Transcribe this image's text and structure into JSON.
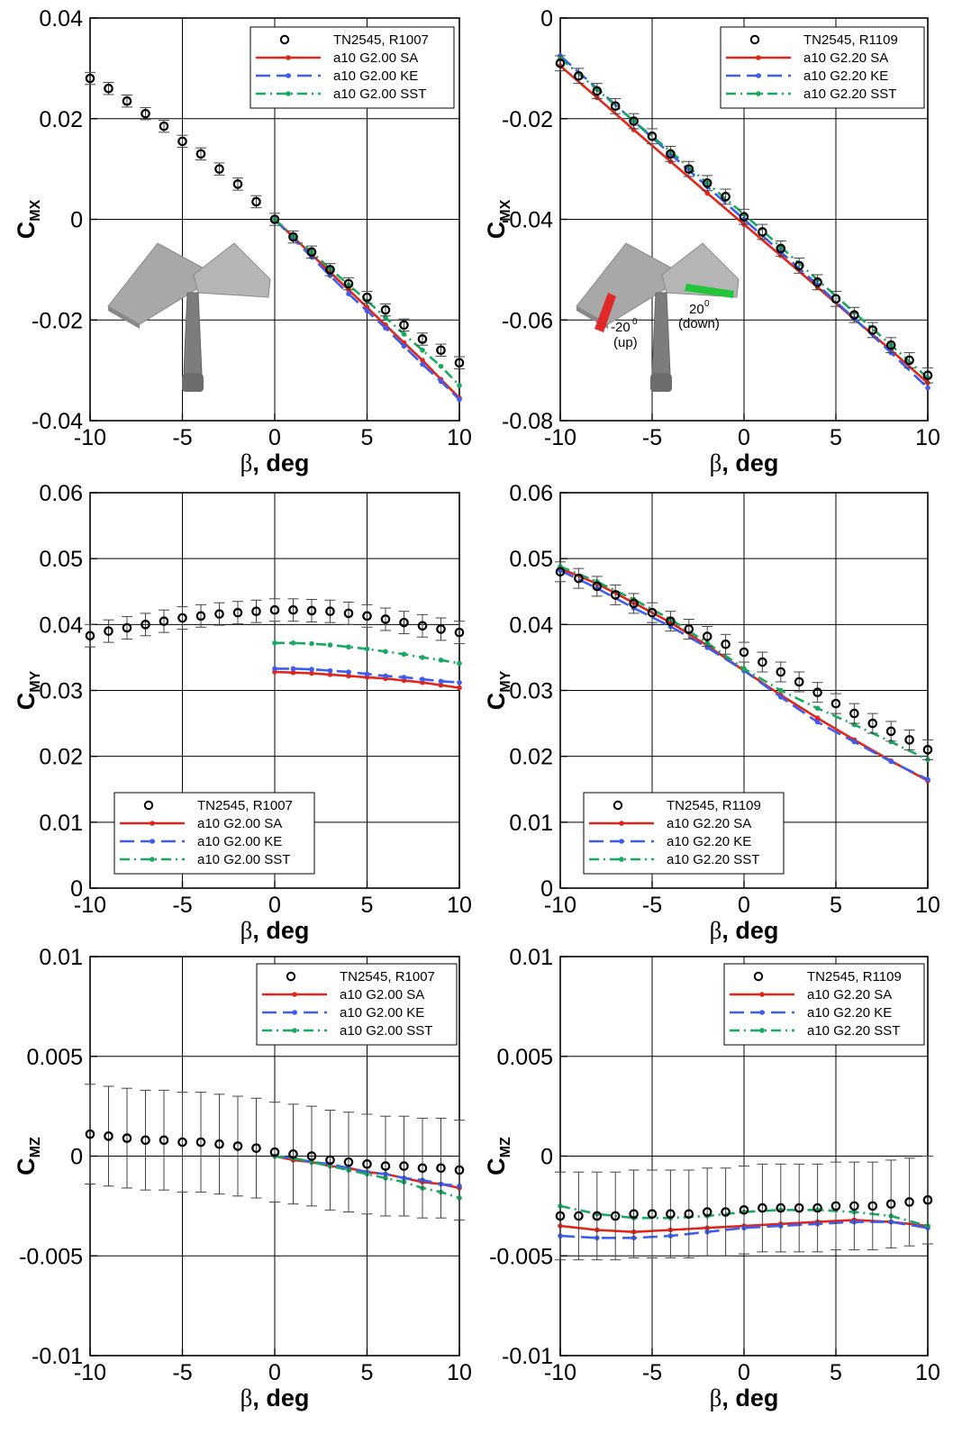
{
  "figure": {
    "colors": {
      "SA": "#e1251b",
      "KE": "#3d5cf0",
      "SST": "#18a860",
      "exp": "#000000"
    },
    "inset_left": {
      "description_icon": "aircraft-model-icon"
    },
    "inset_right": {
      "label_up": "-20",
      "label_up_unit": "(up)",
      "label_down": "20",
      "label_down_unit": "(down)",
      "sup": "0"
    }
  },
  "chart_data": [
    {
      "type": "line",
      "ylabel_main": "C",
      "ylabel_sub": "MX",
      "xlabel_beta": "β",
      "xlabel_unit": ", deg",
      "xlim": [
        -10,
        10
      ],
      "ylim": [
        -0.04,
        0.04
      ],
      "xticks": [
        "-10",
        "-5",
        "0",
        "5",
        "10"
      ],
      "yticks": [
        "-0.04",
        "-0.02",
        "0",
        "0.02",
        "0.04"
      ],
      "ytick_values": [
        -0.04,
        -0.02,
        0,
        0.02,
        0.04
      ],
      "legend": {
        "position": "top-right",
        "entries": [
          "TN2545, R1007",
          "a10 G2.00 SA",
          "a10 G2.00 KE",
          "a10 G2.00 SST"
        ]
      },
      "experiment": {
        "x": [
          -10,
          -9,
          -8,
          -7,
          -6,
          -5,
          -4,
          -3,
          -2,
          -1,
          0,
          1,
          2,
          3,
          4,
          5,
          6,
          7,
          8,
          9,
          10
        ],
        "y": [
          0.028,
          0.026,
          0.0235,
          0.021,
          0.0185,
          0.0155,
          0.013,
          0.01,
          0.007,
          0.0035,
          0.0,
          -0.0035,
          -0.0065,
          -0.01,
          -0.0128,
          -0.0155,
          -0.018,
          -0.021,
          -0.0238,
          -0.026,
          -0.0285
        ],
        "err": 0.0012
      },
      "series": [
        {
          "name": "a10 G2.00 SA",
          "x": [
            0,
            1,
            2,
            3,
            4,
            5,
            6,
            7,
            8,
            9,
            10
          ],
          "y": [
            0,
            -0.0035,
            -0.007,
            -0.0105,
            -0.014,
            -0.0175,
            -0.021,
            -0.0245,
            -0.028,
            -0.0318,
            -0.0355
          ]
        },
        {
          "name": "a10 G2.00 KE",
          "x": [
            0,
            1,
            2,
            3,
            4,
            5,
            6,
            7,
            8,
            9,
            10
          ],
          "y": [
            0,
            -0.0038,
            -0.0075,
            -0.0112,
            -0.0148,
            -0.0182,
            -0.0216,
            -0.0252,
            -0.0288,
            -0.0322,
            -0.0358
          ]
        },
        {
          "name": "a10 G2.00 SST",
          "x": [
            0,
            1,
            2,
            3,
            4,
            5,
            6,
            7,
            8,
            9,
            10
          ],
          "y": [
            0,
            -0.0033,
            -0.0065,
            -0.0098,
            -0.013,
            -0.0162,
            -0.0195,
            -0.0228,
            -0.026,
            -0.0292,
            -0.033
          ]
        }
      ]
    },
    {
      "type": "line",
      "ylabel_main": "C",
      "ylabel_sub": "MX",
      "xlabel_beta": "β",
      "xlabel_unit": ", deg",
      "xlim": [
        -10,
        10
      ],
      "ylim": [
        -0.08,
        0
      ],
      "xticks": [
        "-10",
        "-5",
        "0",
        "5",
        "10"
      ],
      "yticks": [
        "-0.08",
        "-0.06",
        "-0.04",
        "-0.02",
        "0"
      ],
      "ytick_values": [
        -0.08,
        -0.06,
        -0.04,
        -0.02,
        0
      ],
      "legend": {
        "position": "top-right",
        "entries": [
          "TN2545, R1109",
          "a10 G2.20 SA",
          "a10 G2.20 KE",
          "a10 G2.20 SST"
        ]
      },
      "experiment": {
        "x": [
          -10,
          -9,
          -8,
          -7,
          -6,
          -5,
          -4,
          -3,
          -2,
          -1,
          0,
          1,
          2,
          3,
          4,
          5,
          6,
          7,
          8,
          9,
          10
        ],
        "y": [
          -0.009,
          -0.0115,
          -0.0145,
          -0.0175,
          -0.0205,
          -0.0235,
          -0.027,
          -0.03,
          -0.0328,
          -0.0355,
          -0.0395,
          -0.0425,
          -0.0458,
          -0.0492,
          -0.0525,
          -0.0558,
          -0.059,
          -0.062,
          -0.065,
          -0.068,
          -0.071
        ],
        "err": 0.0015
      },
      "series": [
        {
          "name": "a10 G2.20 SA",
          "x": [
            -10,
            -8,
            -6,
            -4,
            -2,
            0,
            2,
            4,
            6,
            8,
            10
          ],
          "y": [
            -0.0095,
            -0.0158,
            -0.0222,
            -0.0285,
            -0.0348,
            -0.041,
            -0.0472,
            -0.0535,
            -0.0598,
            -0.066,
            -0.0725
          ]
        },
        {
          "name": "a10 G2.20 KE",
          "x": [
            -10,
            -8,
            -6,
            -4,
            -2,
            0,
            2,
            4,
            6,
            8,
            10
          ],
          "y": [
            -0.0075,
            -0.014,
            -0.0205,
            -0.027,
            -0.0335,
            -0.04,
            -0.0465,
            -0.053,
            -0.0597,
            -0.0665,
            -0.0735
          ]
        },
        {
          "name": "a10 G2.20 SST",
          "x": [
            -10,
            -8,
            -6,
            -4,
            -2,
            0,
            2,
            4,
            6,
            8,
            10
          ],
          "y": [
            -0.008,
            -0.0142,
            -0.0205,
            -0.0265,
            -0.0328,
            -0.039,
            -0.0455,
            -0.052,
            -0.0585,
            -0.065,
            -0.0715
          ]
        }
      ]
    },
    {
      "type": "line",
      "ylabel_main": "C",
      "ylabel_sub": "MY",
      "xlabel_beta": "β",
      "xlabel_unit": ", deg",
      "xlim": [
        -10,
        10
      ],
      "ylim": [
        0,
        0.06
      ],
      "xticks": [
        "-10",
        "-5",
        "0",
        "5",
        "10"
      ],
      "yticks": [
        "0",
        "0.01",
        "0.02",
        "0.03",
        "0.04",
        "0.05",
        "0.06"
      ],
      "ytick_values": [
        0,
        0.01,
        0.02,
        0.03,
        0.04,
        0.05,
        0.06
      ],
      "legend": {
        "position": "bottom-left",
        "entries": [
          "TN2545, R1007",
          "a10 G2.00 SA",
          "a10 G2.00 KE",
          "a10 G2.00 SST"
        ]
      },
      "experiment": {
        "x": [
          -10,
          -9,
          -8,
          -7,
          -6,
          -5,
          -4,
          -3,
          -2,
          -1,
          0,
          1,
          2,
          3,
          4,
          5,
          6,
          7,
          8,
          9,
          10
        ],
        "y": [
          0.0383,
          0.039,
          0.0395,
          0.04,
          0.0405,
          0.041,
          0.0413,
          0.0416,
          0.0418,
          0.042,
          0.0422,
          0.0422,
          0.0421,
          0.042,
          0.0417,
          0.0413,
          0.0408,
          0.0403,
          0.0398,
          0.0393,
          0.0388
        ],
        "err": 0.0017
      },
      "series": [
        {
          "name": "a10 G2.00 SA",
          "x": [
            0,
            1,
            2,
            3,
            4,
            5,
            6,
            7,
            8,
            9,
            10
          ],
          "y": [
            0.0328,
            0.0327,
            0.0326,
            0.0324,
            0.0322,
            0.032,
            0.0318,
            0.0315,
            0.0312,
            0.0308,
            0.0304
          ]
        },
        {
          "name": "a10 G2.00 KE",
          "x": [
            0,
            1,
            2,
            3,
            4,
            5,
            6,
            7,
            8,
            9,
            10
          ],
          "y": [
            0.0333,
            0.0333,
            0.0332,
            0.033,
            0.0328,
            0.0325,
            0.0322,
            0.032,
            0.0317,
            0.0314,
            0.0312
          ]
        },
        {
          "name": "a10 G2.00 SST",
          "x": [
            0,
            1,
            2,
            3,
            4,
            5,
            6,
            7,
            8,
            9,
            10
          ],
          "y": [
            0.0372,
            0.0372,
            0.0371,
            0.0369,
            0.0366,
            0.0363,
            0.0359,
            0.0355,
            0.035,
            0.0346,
            0.0341
          ]
        }
      ]
    },
    {
      "type": "line",
      "ylabel_main": "C",
      "ylabel_sub": "MY",
      "xlabel_beta": "β",
      "xlabel_unit": ", deg",
      "xlim": [
        -10,
        10
      ],
      "ylim": [
        0,
        0.06
      ],
      "xticks": [
        "-10",
        "-5",
        "0",
        "5",
        "10"
      ],
      "yticks": [
        "0",
        "0.01",
        "0.02",
        "0.03",
        "0.04",
        "0.05",
        "0.06"
      ],
      "ytick_values": [
        0,
        0.01,
        0.02,
        0.03,
        0.04,
        0.05,
        0.06
      ],
      "legend": {
        "position": "bottom-left",
        "entries": [
          "TN2545, R1109",
          "a10 G2.20 SA",
          "a10 G2.20 KE",
          "a10 G2.20 SST"
        ]
      },
      "experiment": {
        "x": [
          -10,
          -9,
          -8,
          -7,
          -6,
          -5,
          -4,
          -3,
          -2,
          -1,
          0,
          1,
          2,
          3,
          4,
          5,
          6,
          7,
          8,
          9,
          10
        ],
        "y": [
          0.048,
          0.047,
          0.0458,
          0.0445,
          0.0432,
          0.0418,
          0.0405,
          0.0393,
          0.0382,
          0.037,
          0.0358,
          0.0343,
          0.0328,
          0.0313,
          0.0297,
          0.028,
          0.0265,
          0.025,
          0.0238,
          0.0225,
          0.021
        ],
        "err": 0.0015
      },
      "series": [
        {
          "name": "a10 G2.20 SA",
          "x": [
            -10,
            -8,
            -6,
            -4,
            -2,
            0,
            2,
            4,
            6,
            8,
            10
          ],
          "y": [
            0.0485,
            0.0462,
            0.0433,
            0.0403,
            0.0368,
            0.033,
            0.0293,
            0.0258,
            0.0225,
            0.0193,
            0.0163
          ]
        },
        {
          "name": "a10 G2.20 KE",
          "x": [
            -10,
            -8,
            -6,
            -4,
            -2,
            0,
            2,
            4,
            6,
            8,
            10
          ],
          "y": [
            0.0482,
            0.0455,
            0.0425,
            0.0397,
            0.0365,
            0.033,
            0.029,
            0.0252,
            0.0222,
            0.0192,
            0.0165
          ]
        },
        {
          "name": "a10 G2.20 SST",
          "x": [
            -10,
            -8,
            -6,
            -4,
            -2,
            0,
            2,
            4,
            6,
            8,
            10
          ],
          "y": [
            0.0488,
            0.0465,
            0.0438,
            0.0408,
            0.0372,
            0.0333,
            0.03,
            0.0273,
            0.0248,
            0.0222,
            0.0195
          ]
        }
      ]
    },
    {
      "type": "line",
      "ylabel_main": "C",
      "ylabel_sub": "MZ",
      "xlabel_beta": "β",
      "xlabel_unit": ", deg",
      "xlim": [
        -10,
        10
      ],
      "ylim": [
        -0.01,
        0.01
      ],
      "xticks": [
        "-10",
        "-5",
        "0",
        "5",
        "10"
      ],
      "yticks": [
        "-0.01",
        "-0.005",
        "0",
        "0.005",
        "0.01"
      ],
      "ytick_values": [
        -0.01,
        -0.005,
        0,
        0.005,
        0.01
      ],
      "legend": {
        "position": "top-right",
        "entries": [
          "TN2545, R1007",
          "a10 G2.00 SA",
          "a10 G2.00 KE",
          "a10 G2.00 SST"
        ]
      },
      "experiment": {
        "x": [
          -10,
          -9,
          -8,
          -7,
          -6,
          -5,
          -4,
          -3,
          -2,
          -1,
          0,
          1,
          2,
          3,
          4,
          5,
          6,
          7,
          8,
          9,
          10
        ],
        "y": [
          0.0011,
          0.001,
          0.0009,
          0.0008,
          0.0008,
          0.0007,
          0.0007,
          0.0006,
          0.0005,
          0.0004,
          0.0002,
          0.0001,
          0.0,
          -0.0002,
          -0.0003,
          -0.0004,
          -0.0005,
          -0.0005,
          -0.0006,
          -0.0006,
          -0.0007
        ],
        "err": 0.0025
      },
      "series": [
        {
          "name": "a10 G2.00 SA",
          "x": [
            0,
            1,
            2,
            3,
            4,
            5,
            6,
            7,
            8,
            9,
            10
          ],
          "y": [
            0,
            -0.0002,
            -0.0003,
            -0.0005,
            -0.0006,
            -0.0008,
            -0.0009,
            -0.0011,
            -0.0013,
            -0.0014,
            -0.0016
          ]
        },
        {
          "name": "a10 G2.00 KE",
          "x": [
            0,
            1,
            2,
            3,
            4,
            5,
            6,
            7,
            8,
            9,
            10
          ],
          "y": [
            0,
            -0.0001,
            -0.0003,
            -0.0004,
            -0.0006,
            -0.0008,
            -0.0009,
            -0.0011,
            -0.0012,
            -0.0014,
            -0.0015
          ]
        },
        {
          "name": "a10 G2.00 SST",
          "x": [
            0,
            1,
            2,
            3,
            4,
            5,
            6,
            7,
            8,
            9,
            10
          ],
          "y": [
            0,
            -0.0001,
            -0.0003,
            -0.0005,
            -0.0007,
            -0.0009,
            -0.0011,
            -0.0013,
            -0.0016,
            -0.0018,
            -0.0021
          ]
        }
      ]
    },
    {
      "type": "line",
      "ylabel_main": "C",
      "ylabel_sub": "MZ",
      "xlabel_beta": "β",
      "xlabel_unit": ", deg",
      "xlim": [
        -10,
        10
      ],
      "ylim": [
        -0.01,
        0.01
      ],
      "xticks": [
        "-10",
        "-5",
        "0",
        "5",
        "10"
      ],
      "yticks": [
        "-0.01",
        "-0.005",
        "0",
        "0.005",
        "0.01"
      ],
      "ytick_values": [
        -0.01,
        -0.005,
        0,
        0.005,
        0.01
      ],
      "legend": {
        "position": "top-right",
        "entries": [
          "TN2545, R1109",
          "a10 G2.20 SA",
          "a10 G2.20 KE",
          "a10 G2.20 SST"
        ]
      },
      "experiment": {
        "x": [
          -10,
          -9,
          -8,
          -7,
          -6,
          -5,
          -4,
          -3,
          -2,
          -1,
          0,
          1,
          2,
          3,
          4,
          5,
          6,
          7,
          8,
          9,
          10
        ],
        "y": [
          -0.003,
          -0.003,
          -0.003,
          -0.003,
          -0.0029,
          -0.0029,
          -0.0029,
          -0.0029,
          -0.0028,
          -0.0028,
          -0.0027,
          -0.0026,
          -0.0026,
          -0.0026,
          -0.0026,
          -0.0025,
          -0.0025,
          -0.0025,
          -0.0024,
          -0.0023,
          -0.0022
        ],
        "err": 0.0022
      },
      "series": [
        {
          "name": "a10 G2.20 SA",
          "x": [
            -10,
            -8,
            -6,
            -4,
            -2,
            0,
            2,
            4,
            6,
            8,
            10
          ],
          "y": [
            -0.0035,
            -0.0037,
            -0.0038,
            -0.0037,
            -0.0036,
            -0.0035,
            -0.0034,
            -0.0033,
            -0.0032,
            -0.0033,
            -0.0035
          ]
        },
        {
          "name": "a10 G2.20 KE",
          "x": [
            -10,
            -8,
            -6,
            -4,
            -2,
            0,
            2,
            4,
            6,
            8,
            10
          ],
          "y": [
            -0.004,
            -0.0041,
            -0.0041,
            -0.004,
            -0.0038,
            -0.0036,
            -0.0035,
            -0.0034,
            -0.0033,
            -0.0033,
            -0.0036
          ]
        },
        {
          "name": "a10 G2.20 SST",
          "x": [
            -10,
            -8,
            -6,
            -4,
            -2,
            0,
            2,
            4,
            6,
            8,
            10
          ],
          "y": [
            -0.0025,
            -0.0029,
            -0.0031,
            -0.0031,
            -0.003,
            -0.0028,
            -0.0027,
            -0.0027,
            -0.0028,
            -0.003,
            -0.0035
          ]
        }
      ]
    }
  ]
}
